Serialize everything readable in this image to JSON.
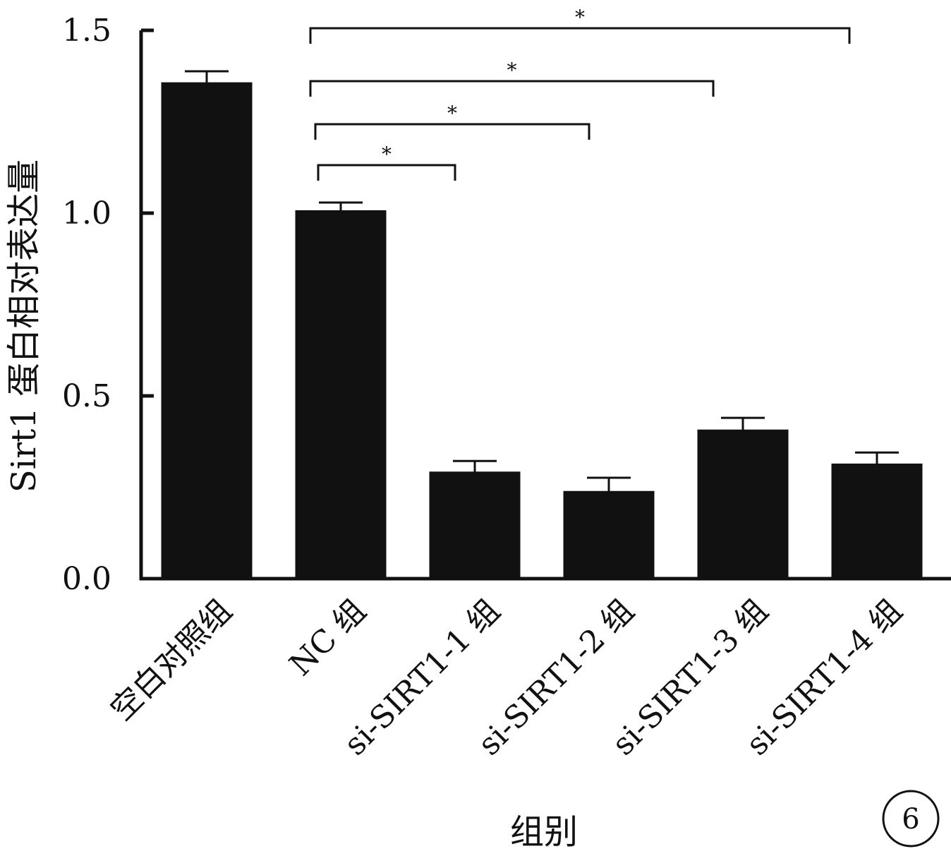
{
  "chart_data": {
    "type": "bar",
    "ylabel": "Sirt1 蛋白相对表达量",
    "xlabel": "组别",
    "ylim": [
      0,
      1.5
    ],
    "yticks": [
      "0.0",
      "0.5",
      "1.0",
      "1.5"
    ],
    "categories": [
      "空白对照组",
      "NC 组",
      "si-SIRT1-1 组",
      "si-SIRT1-2 组",
      "si-SIRT1-3 组",
      "si-SIRT1-4 组"
    ],
    "values": [
      1.355,
      1.005,
      0.29,
      0.237,
      0.405,
      0.312
    ],
    "errors": [
      0.033,
      0.024,
      0.032,
      0.039,
      0.035,
      0.033
    ],
    "bar_color": "#111111",
    "significance": [
      {
        "from": "NC 组",
        "to": "si-SIRT1-1 组",
        "label": "*"
      },
      {
        "from": "NC 组",
        "to": "si-SIRT1-2 组",
        "label": "*"
      },
      {
        "from": "NC 组",
        "to": "si-SIRT1-3 组",
        "label": "*"
      },
      {
        "from": "NC 组",
        "to": "si-SIRT1-4 组",
        "label": "*"
      }
    ],
    "panel_label": "6"
  }
}
